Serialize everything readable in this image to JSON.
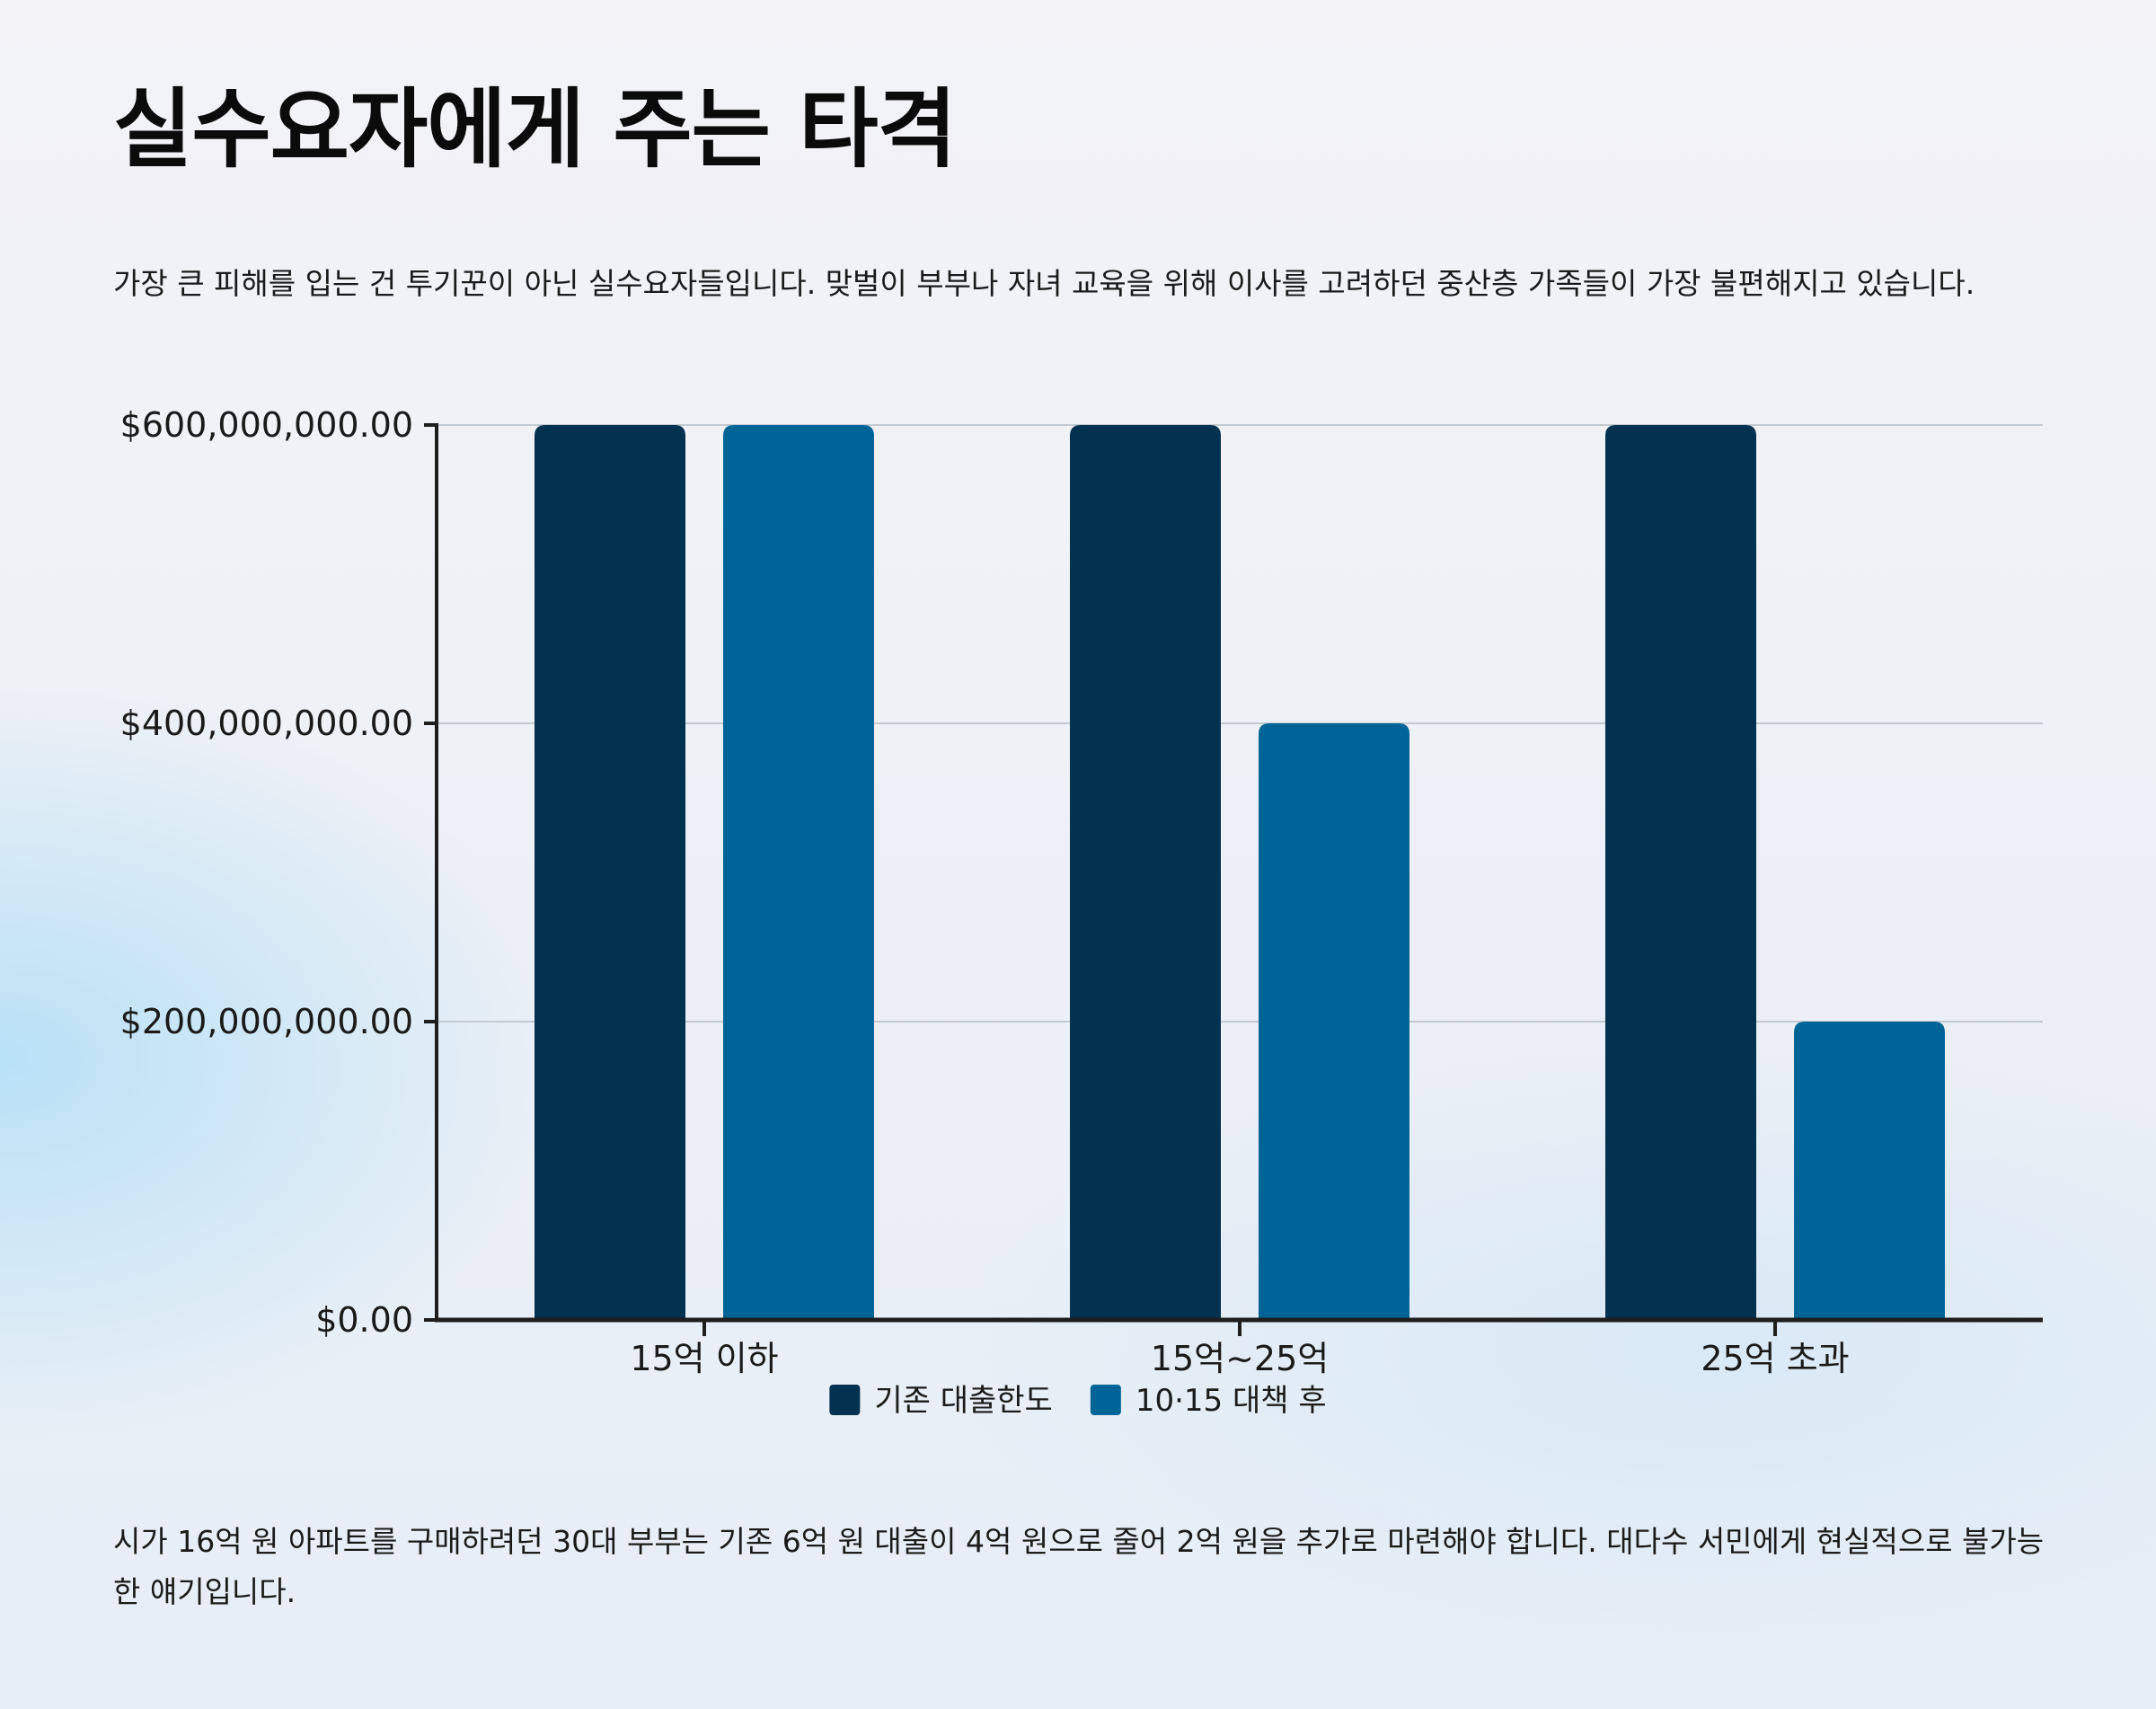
{
  "page": {
    "title": "실수요자에게 주는 타격",
    "intro": "가장 큰 피해를 입는 건 투기꾼이 아닌 실수요자들입니다. 맞벌이 부부나 자녀 교육을 위해 이사를 고려하던 중산층 가족들이 가장 불편해지고 있습니다.",
    "outro": "시가 16억 원 아파트를 구매하려던 30대 부부는 기존 6억 원 대출이 4억 원으로 줄어 2억 원을 추가로 마련해야 합니다. 대다수 서민에게 현실적으로 불가능한 얘기입니다."
  },
  "chart_data": {
    "type": "bar",
    "title": "",
    "xlabel": "",
    "ylabel": "",
    "categories": [
      "15억 이하",
      "15억~25억",
      "25억 초과"
    ],
    "series": [
      {
        "name": "기존 대출한도",
        "values": [
          600000000,
          600000000,
          600000000
        ],
        "color": "#02324f"
      },
      {
        "name": "10·15 대책 후",
        "values": [
          600000000,
          400000000,
          200000000
        ],
        "color": "#006596"
      }
    ],
    "ylim": [
      0,
      600000000
    ],
    "yticks": [
      0,
      200000000,
      400000000,
      600000000
    ],
    "ytick_labels": [
      "$0.00",
      "$200,000,000.00",
      "$400,000,000.00",
      "$600,000,000.00"
    ],
    "grid": true,
    "legend": "bottom-center"
  }
}
